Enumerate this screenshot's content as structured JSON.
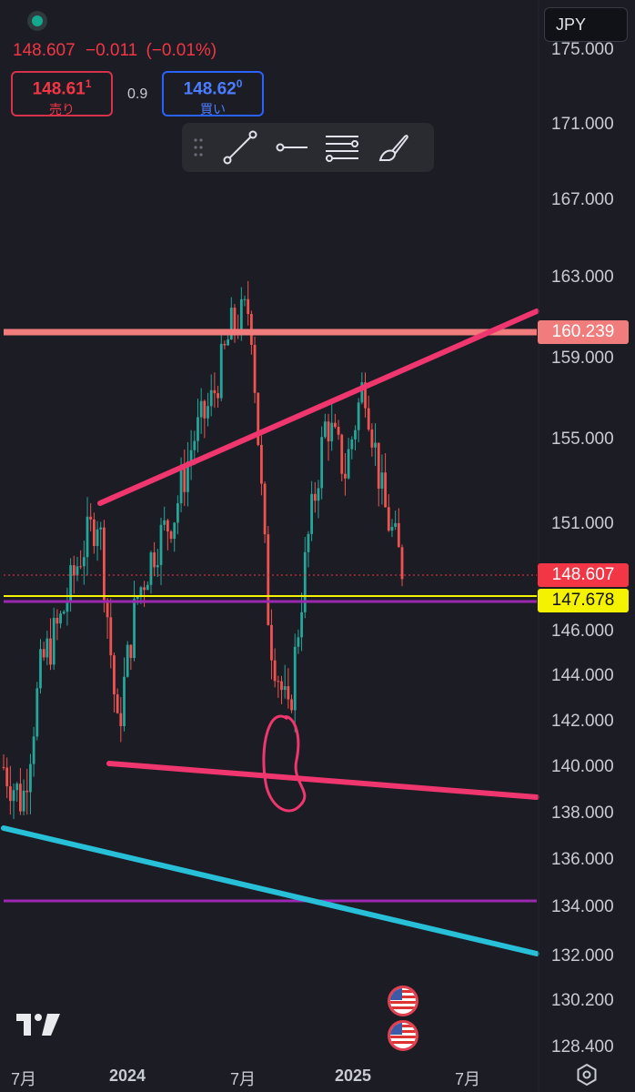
{
  "header": {
    "last_price": "148.607",
    "change": "−0.011",
    "change_pct": "(−0.01%)",
    "currency": "JPY",
    "sell": {
      "price_main": "148.61",
      "price_sup": "1",
      "label": "売り"
    },
    "spread": "0.9",
    "buy": {
      "price_main": "148.62",
      "price_sup": "0",
      "label": "買い"
    }
  },
  "toolbar": {
    "tools": [
      "trend-line-icon",
      "ray-icon",
      "parallel-lines-icon",
      "brush-icon"
    ]
  },
  "axis": {
    "y_labels": [
      "175.000",
      "171.000",
      "167.000",
      "163.000",
      "159.000",
      "155.000",
      "151.000",
      "146.000",
      "144.000",
      "142.000",
      "140.000",
      "138.000",
      "136.000",
      "134.000",
      "132.000",
      "130.200",
      "128.400"
    ],
    "x_labels": [
      "7月",
      "2024",
      "7月",
      "2025",
      "7月"
    ]
  },
  "price_tags": {
    "resistance": "160.239",
    "current": "148.607",
    "support": "147.678"
  },
  "colors": {
    "background": "#1b1c24",
    "up": "#26a69a",
    "down": "#ef5350",
    "pink_line": "#f0366e",
    "salmon_line": "#f07c7c",
    "cyan_line": "#27c0d8",
    "purple_line": "#9c27b0",
    "yellow_line": "#f5f200"
  },
  "chart_data": {
    "type": "line",
    "title": "",
    "xlabel": "",
    "ylabel": "",
    "x": [
      "2023-06",
      "2023-07",
      "2023-08",
      "2023-09",
      "2023-10",
      "2023-11",
      "2023-12",
      "2024-01",
      "2024-02",
      "2024-03",
      "2024-04",
      "2024-05",
      "2024-06",
      "2024-07",
      "2024-08",
      "2024-09",
      "2024-10",
      "2024-11",
      "2024-12",
      "2025-01",
      "2025-02",
      "2025-03"
    ],
    "series": [
      {
        "values": [
          140.0,
          138.5,
          144.5,
          146.5,
          149.5,
          151.5,
          141.5,
          147.5,
          150.0,
          151.5,
          155.0,
          157.0,
          160.5,
          161.5,
          146.0,
          142.0,
          150.0,
          156.0,
          153.5,
          158.0,
          152.0,
          149.0
        ]
      }
    ],
    "ylim": [
      128.4,
      175.0
    ],
    "last_value": 148.607
  }
}
